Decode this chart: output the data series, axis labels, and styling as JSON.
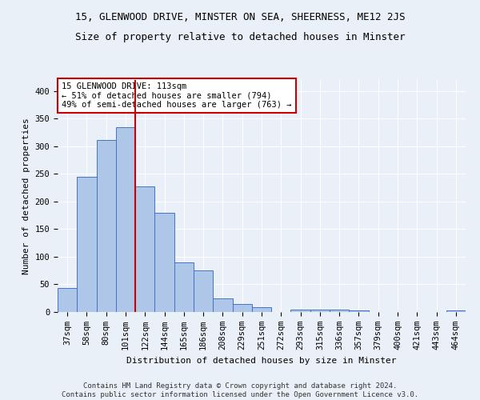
{
  "title1": "15, GLENWOOD DRIVE, MINSTER ON SEA, SHEERNESS, ME12 2JS",
  "title2": "Size of property relative to detached houses in Minster",
  "xlabel": "Distribution of detached houses by size in Minster",
  "ylabel": "Number of detached properties",
  "categories": [
    "37sqm",
    "58sqm",
    "80sqm",
    "101sqm",
    "122sqm",
    "144sqm",
    "165sqm",
    "186sqm",
    "208sqm",
    "229sqm",
    "251sqm",
    "272sqm",
    "293sqm",
    "315sqm",
    "336sqm",
    "357sqm",
    "379sqm",
    "400sqm",
    "421sqm",
    "443sqm",
    "464sqm"
  ],
  "values": [
    44,
    245,
    312,
    335,
    228,
    180,
    90,
    75,
    25,
    15,
    9,
    0,
    4,
    5,
    4,
    3,
    0,
    0,
    0,
    0,
    3
  ],
  "bar_color": "#aec6e8",
  "bar_edge_color": "#4472c4",
  "vline_x": 3.5,
  "vline_color": "#cc0000",
  "annotation_line1": "15 GLENWOOD DRIVE: 113sqm",
  "annotation_line2": "← 51% of detached houses are smaller (794)",
  "annotation_line3": "49% of semi-detached houses are larger (763) →",
  "annotation_box_color": "#ffffff",
  "annotation_box_edge": "#cc0000",
  "ylim": [
    0,
    420
  ],
  "yticks": [
    0,
    50,
    100,
    150,
    200,
    250,
    300,
    350,
    400
  ],
  "bg_color": "#eaf0f8",
  "plot_bg_color": "#eaf0f8",
  "footer": "Contains HM Land Registry data © Crown copyright and database right 2024.\nContains public sector information licensed under the Open Government Licence v3.0.",
  "title1_fontsize": 9,
  "title2_fontsize": 9,
  "xlabel_fontsize": 8,
  "ylabel_fontsize": 8,
  "tick_fontsize": 7.5,
  "annotation_fontsize": 7.5,
  "footer_fontsize": 6.5
}
